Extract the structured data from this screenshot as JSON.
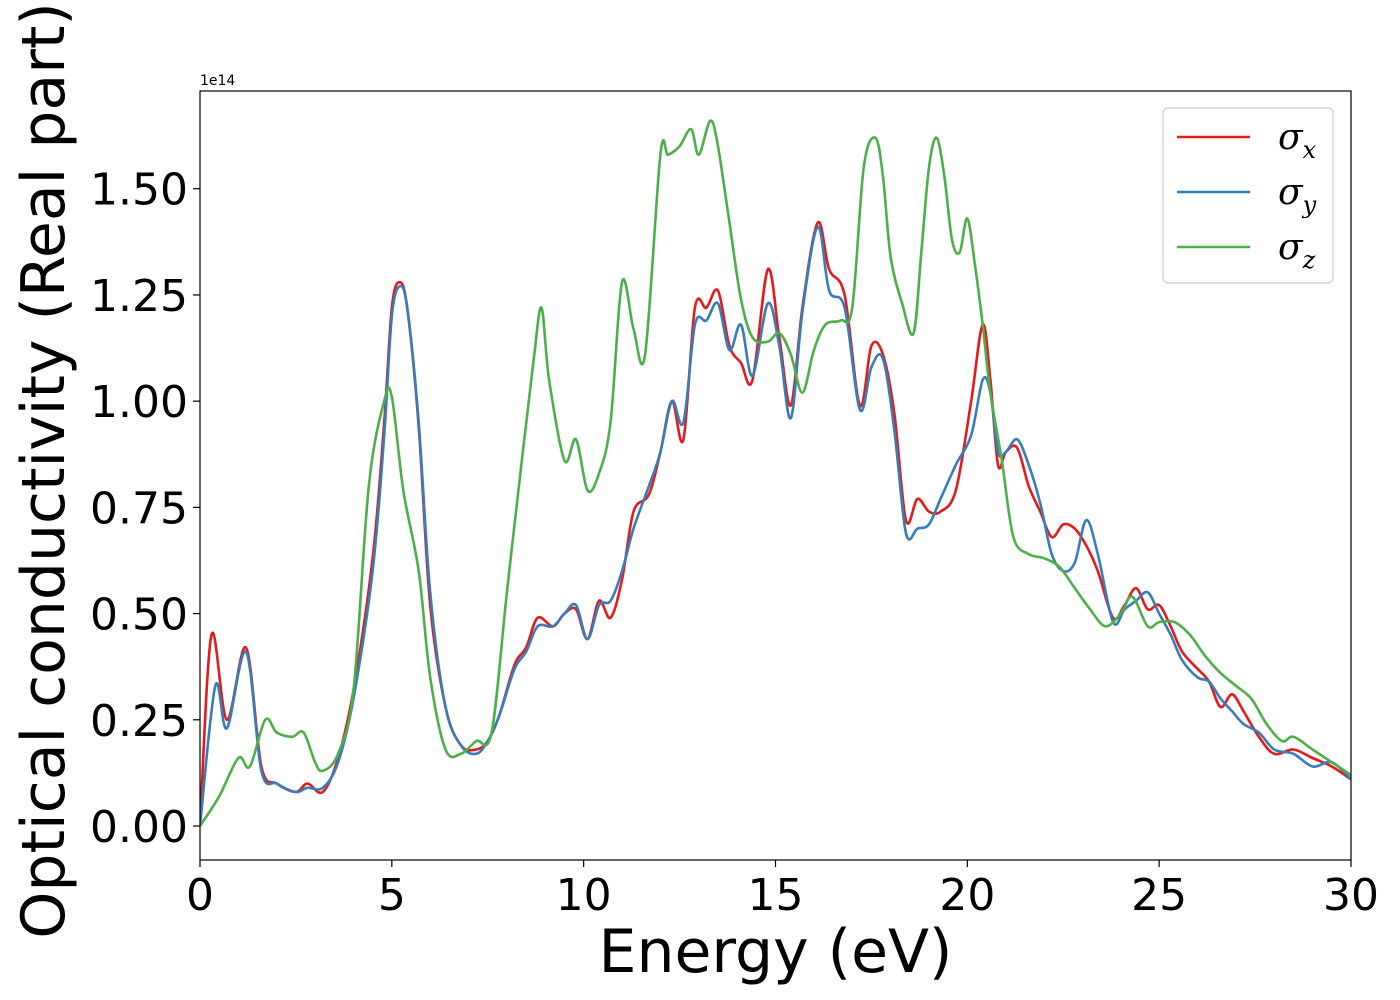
{
  "chart_data": {
    "type": "line",
    "title": "",
    "xlabel": "Energy (eV)",
    "ylabel": "Optical conductivity (Real part)",
    "y_offset_label": "1e14",
    "y_scale": 100000000000000.0,
    "xlim": [
      0,
      30
    ],
    "ylim": [
      -0.08,
      1.73
    ],
    "x_ticks": [
      0,
      5,
      10,
      15,
      20,
      25,
      30
    ],
    "x_tick_labels": [
      "0",
      "5",
      "10",
      "15",
      "20",
      "25",
      "30"
    ],
    "y_ticks": [
      0.0,
      0.25,
      0.5,
      0.75,
      1.0,
      1.25,
      1.5
    ],
    "y_tick_labels": [
      "0.00",
      "0.25",
      "0.50",
      "0.75",
      "1.00",
      "1.25",
      "1.50"
    ],
    "grid": false,
    "legend": {
      "position": "top-right"
    },
    "series": [
      {
        "name": "σx",
        "symbol": "σ",
        "subscript": "x",
        "color": "#e41a1c",
        "x": [
          0,
          0.3,
          0.7,
          1.2,
          1.6,
          2.0,
          2.5,
          2.8,
          3.2,
          3.6,
          4.0,
          4.5,
          4.8,
          5.0,
          5.2,
          5.4,
          5.7,
          6.0,
          6.4,
          6.8,
          7.2,
          7.5,
          7.8,
          8.2,
          8.5,
          8.8,
          9.2,
          9.5,
          9.8,
          10.1,
          10.4,
          10.7,
          11.0,
          11.3,
          11.7,
          12.0,
          12.3,
          12.6,
          12.9,
          13.2,
          13.5,
          13.8,
          14.1,
          14.4,
          14.8,
          15.1,
          15.4,
          15.7,
          16.1,
          16.4,
          16.8,
          17.2,
          17.5,
          17.8,
          18.1,
          18.4,
          18.7,
          19.0,
          19.3,
          19.7,
          20.1,
          20.4,
          20.6,
          20.8,
          21.0,
          21.3,
          21.6,
          21.9,
          22.2,
          22.5,
          22.8,
          23.1,
          23.4,
          23.8,
          24.1,
          24.4,
          24.7,
          25.0,
          25.3,
          25.6,
          26.0,
          26.3,
          26.6,
          26.9,
          27.2,
          27.6,
          28.0,
          28.5,
          29.0,
          29.5,
          30.0
        ],
        "values": [
          0.0,
          0.45,
          0.25,
          0.42,
          0.14,
          0.1,
          0.08,
          0.1,
          0.08,
          0.16,
          0.32,
          0.63,
          0.95,
          1.22,
          1.28,
          1.22,
          0.94,
          0.52,
          0.28,
          0.19,
          0.18,
          0.2,
          0.26,
          0.38,
          0.42,
          0.49,
          0.47,
          0.5,
          0.51,
          0.44,
          0.53,
          0.49,
          0.58,
          0.74,
          0.78,
          0.88,
          1.0,
          0.91,
          1.22,
          1.22,
          1.26,
          1.13,
          1.09,
          1.05,
          1.31,
          1.15,
          0.99,
          1.22,
          1.42,
          1.31,
          1.25,
          0.99,
          1.13,
          1.11,
          0.97,
          0.72,
          0.77,
          0.74,
          0.74,
          0.79,
          1.0,
          1.18,
          1.05,
          0.85,
          0.88,
          0.89,
          0.8,
          0.74,
          0.68,
          0.71,
          0.7,
          0.66,
          0.6,
          0.49,
          0.52,
          0.56,
          0.51,
          0.52,
          0.47,
          0.41,
          0.37,
          0.34,
          0.28,
          0.31,
          0.27,
          0.21,
          0.17,
          0.18,
          0.16,
          0.14,
          0.11
        ]
      },
      {
        "name": "σy",
        "symbol": "σ",
        "subscript": "y",
        "color": "#377eb8",
        "x": [
          0,
          0.4,
          0.7,
          1.2,
          1.6,
          2.0,
          2.5,
          2.8,
          3.2,
          3.6,
          4.0,
          4.5,
          4.8,
          5.0,
          5.2,
          5.4,
          5.7,
          6.0,
          6.4,
          6.8,
          7.2,
          7.5,
          7.8,
          8.2,
          8.5,
          8.8,
          9.2,
          9.5,
          9.8,
          10.1,
          10.4,
          10.7,
          11.0,
          11.3,
          11.7,
          12.0,
          12.3,
          12.6,
          12.9,
          13.2,
          13.5,
          13.8,
          14.1,
          14.4,
          14.8,
          15.1,
          15.4,
          15.7,
          16.1,
          16.4,
          16.8,
          17.2,
          17.5,
          17.8,
          18.1,
          18.4,
          18.7,
          19.0,
          19.3,
          19.7,
          20.1,
          20.4,
          20.6,
          20.8,
          21.0,
          21.3,
          21.6,
          21.9,
          22.2,
          22.5,
          22.8,
          23.1,
          23.4,
          23.8,
          24.1,
          24.4,
          24.7,
          25.0,
          25.3,
          25.6,
          26.0,
          26.3,
          26.6,
          26.9,
          27.2,
          27.6,
          28.0,
          28.5,
          29.0,
          29.5,
          30.0
        ],
        "values": [
          0.0,
          0.33,
          0.23,
          0.41,
          0.13,
          0.1,
          0.08,
          0.09,
          0.09,
          0.15,
          0.3,
          0.6,
          0.92,
          1.2,
          1.27,
          1.22,
          0.95,
          0.55,
          0.28,
          0.19,
          0.17,
          0.2,
          0.26,
          0.37,
          0.41,
          0.47,
          0.47,
          0.5,
          0.52,
          0.44,
          0.52,
          0.53,
          0.6,
          0.7,
          0.8,
          0.88,
          1.0,
          0.95,
          1.18,
          1.19,
          1.23,
          1.12,
          1.18,
          1.06,
          1.23,
          1.13,
          0.96,
          1.21,
          1.41,
          1.26,
          1.22,
          0.98,
          1.08,
          1.1,
          0.93,
          0.69,
          0.7,
          0.71,
          0.77,
          0.85,
          0.92,
          1.05,
          1.02,
          0.88,
          0.88,
          0.91,
          0.85,
          0.76,
          0.64,
          0.6,
          0.62,
          0.72,
          0.64,
          0.48,
          0.51,
          0.53,
          0.55,
          0.5,
          0.45,
          0.39,
          0.35,
          0.34,
          0.3,
          0.27,
          0.24,
          0.22,
          0.18,
          0.17,
          0.14,
          0.15,
          0.11
        ]
      },
      {
        "name": "σz",
        "symbol": "σ",
        "subscript": "z",
        "color": "#4daf4a",
        "x": [
          0,
          0.5,
          1.0,
          1.3,
          1.7,
          2.0,
          2.4,
          2.7,
          3.0,
          3.2,
          3.6,
          4.0,
          4.4,
          4.8,
          5.0,
          5.3,
          5.7,
          6.0,
          6.4,
          6.8,
          7.2,
          7.6,
          8.0,
          8.4,
          8.7,
          8.9,
          9.1,
          9.5,
          9.8,
          10.1,
          10.4,
          10.7,
          11.0,
          11.3,
          11.6,
          12.0,
          12.2,
          12.5,
          12.8,
          13.0,
          13.3,
          13.5,
          13.8,
          14.1,
          14.4,
          14.8,
          15.1,
          15.4,
          15.7,
          16.0,
          16.3,
          16.7,
          17.0,
          17.3,
          17.6,
          17.8,
          18.0,
          18.3,
          18.6,
          18.8,
          19.0,
          19.2,
          19.4,
          19.6,
          19.8,
          20.0,
          20.2,
          20.4,
          20.6,
          20.9,
          21.2,
          21.6,
          22.0,
          22.4,
          22.8,
          23.2,
          23.6,
          24.0,
          24.3,
          24.7,
          25.0,
          25.4,
          25.8,
          26.2,
          26.6,
          27.0,
          27.4,
          27.8,
          28.2,
          28.5,
          29.0,
          29.5,
          30.0
        ],
        "values": [
          0.0,
          0.07,
          0.16,
          0.14,
          0.25,
          0.22,
          0.21,
          0.22,
          0.15,
          0.13,
          0.17,
          0.32,
          0.8,
          1.0,
          1.01,
          0.79,
          0.6,
          0.35,
          0.18,
          0.17,
          0.2,
          0.22,
          0.55,
          0.87,
          1.1,
          1.22,
          1.05,
          0.86,
          0.91,
          0.79,
          0.83,
          0.95,
          1.28,
          1.17,
          1.11,
          1.58,
          1.58,
          1.6,
          1.64,
          1.58,
          1.66,
          1.6,
          1.42,
          1.24,
          1.15,
          1.14,
          1.16,
          1.11,
          1.02,
          1.12,
          1.18,
          1.19,
          1.22,
          1.55,
          1.62,
          1.53,
          1.34,
          1.23,
          1.16,
          1.35,
          1.55,
          1.62,
          1.53,
          1.38,
          1.35,
          1.43,
          1.32,
          1.18,
          1.02,
          0.86,
          0.68,
          0.64,
          0.63,
          0.61,
          0.56,
          0.51,
          0.47,
          0.5,
          0.54,
          0.47,
          0.48,
          0.48,
          0.45,
          0.4,
          0.36,
          0.33,
          0.3,
          0.24,
          0.2,
          0.21,
          0.18,
          0.15,
          0.12
        ]
      }
    ]
  }
}
